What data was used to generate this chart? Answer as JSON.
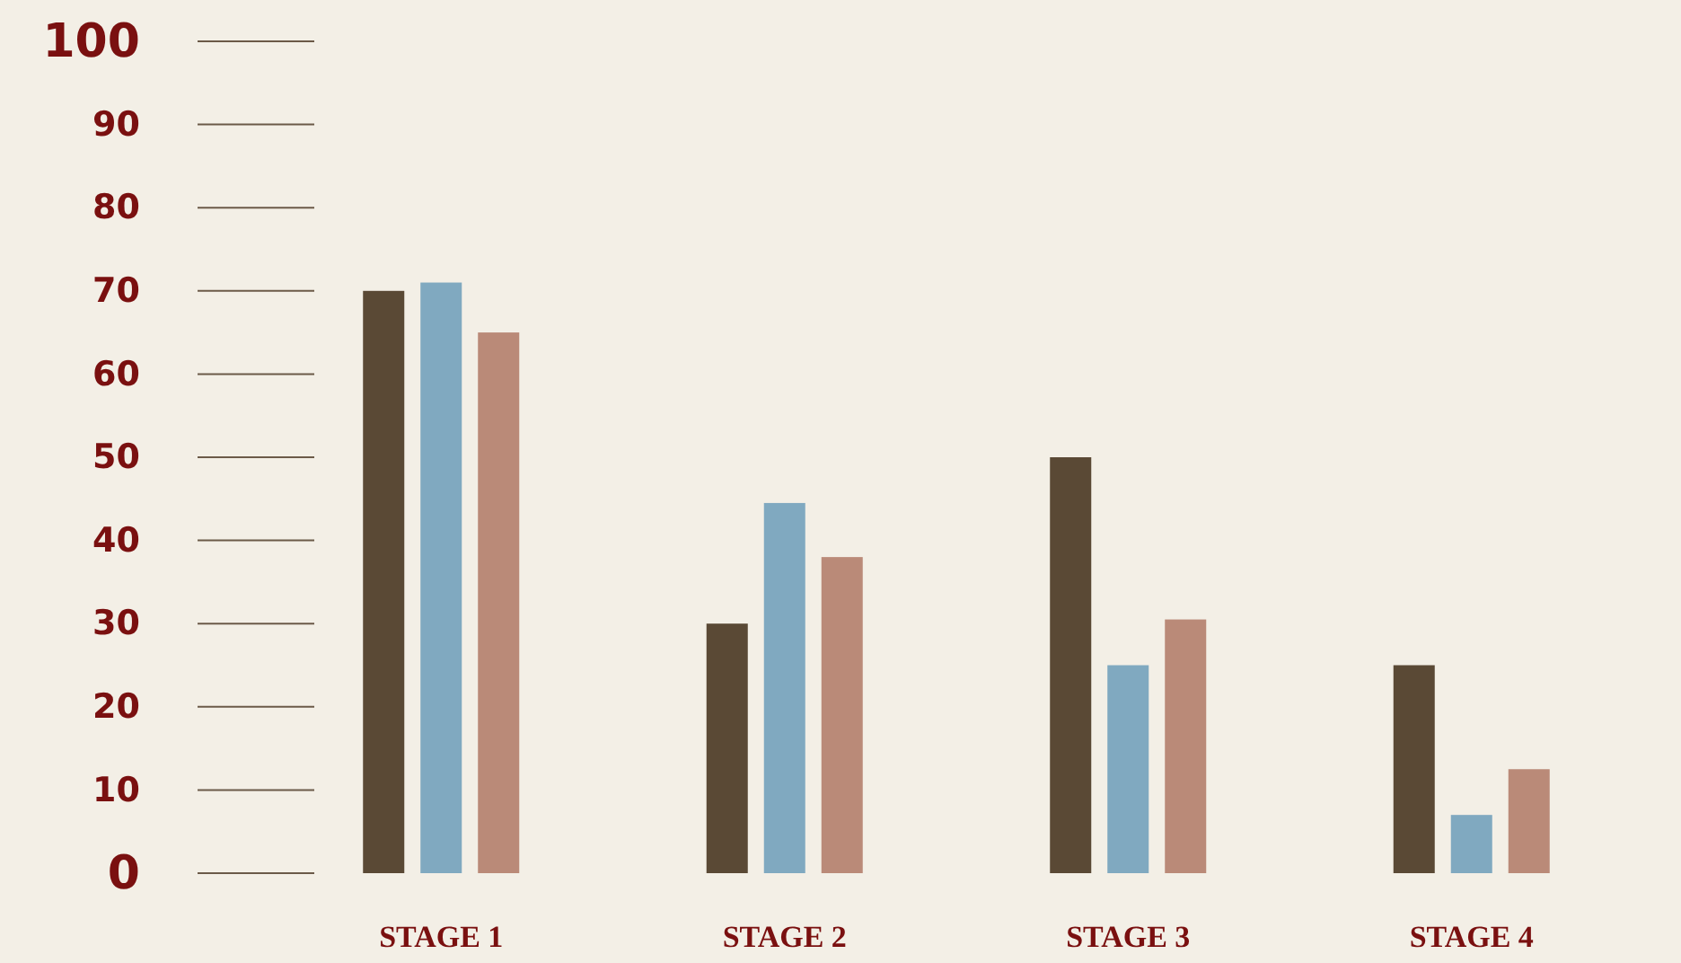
{
  "chart_data": {
    "type": "bar",
    "categories": [
      "STAGE 1",
      "STAGE 2",
      "STAGE 3",
      "STAGE 4"
    ],
    "series": [
      {
        "color": "#5a4935",
        "values": [
          70,
          30,
          50,
          25
        ]
      },
      {
        "color": "#80a9c0",
        "values": [
          71,
          44.5,
          25,
          7
        ]
      },
      {
        "color": "#ba8a78",
        "values": [
          65,
          38,
          30.5,
          12.5
        ]
      }
    ],
    "ylim": [
      0,
      100
    ],
    "yticks": [
      0,
      10,
      20,
      30,
      40,
      50,
      60,
      70,
      80,
      90,
      100
    ],
    "grid": false
  }
}
